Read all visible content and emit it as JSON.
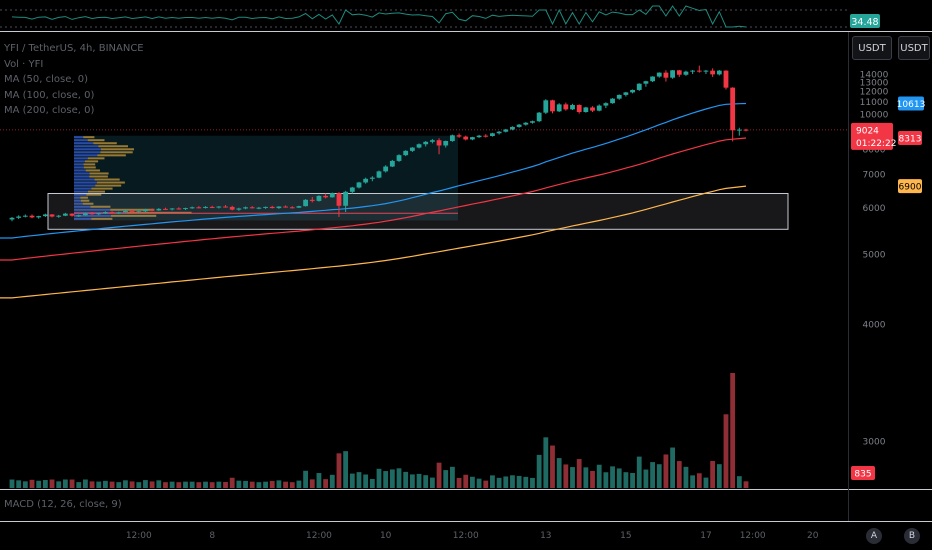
{
  "legend": {
    "symbol": "YFI / TetherUS, 4h, BINANCE",
    "vol": "Vol · YFI",
    "ma50": "MA (50, close, 0)",
    "ma100": "MA (100, close, 0)",
    "ma200": "MA (200, close, 0)"
  },
  "units": {
    "left": "USDT",
    "right": "USDT"
  },
  "badges": {
    "rsi": {
      "label": "34.48",
      "color": "#26a69a"
    },
    "ma50": {
      "label": "10613",
      "color": "#2196f3"
    },
    "price": {
      "label": "9024",
      "color": "#f23645"
    },
    "countdown": {
      "label": "01:22:22",
      "color": "#f23645"
    },
    "ma100": {
      "label": "8313",
      "color": "#f23645"
    },
    "ma200": {
      "label": "6900",
      "color": "#ffb74d"
    },
    "volume": {
      "label": "835",
      "color": "#f23645"
    }
  },
  "macd": {
    "label": "MACD (12, 26, close, 9)"
  },
  "buttons": {
    "auto": "A",
    "log": "B"
  },
  "chart_data": {
    "type": "candlestick",
    "title": "YFI / TetherUS, 4h, BINANCE",
    "y_ticks": [
      "14000",
      "13000",
      "12000",
      "11000",
      "10000",
      "9000",
      "8000",
      "7000",
      "6000",
      "5000",
      "4000",
      "3000"
    ],
    "x_ticks": [
      "12:00",
      "8",
      "12:00",
      "10",
      "12:00",
      "13",
      "15",
      "17",
      "12:00",
      "20"
    ],
    "series": [
      {
        "name": "YFI / TetherUS",
        "color_up": "#26a69a",
        "color_down": "#f23645",
        "ohlc": [
          [
            5720,
            5780,
            5680,
            5760
          ],
          [
            5760,
            5820,
            5730,
            5790
          ],
          [
            5790,
            5840,
            5770,
            5810
          ],
          [
            5810,
            5840,
            5750,
            5770
          ],
          [
            5770,
            5810,
            5740,
            5800
          ],
          [
            5800,
            5860,
            5780,
            5840
          ],
          [
            5840,
            5850,
            5770,
            5790
          ],
          [
            5790,
            5830,
            5760,
            5810
          ],
          [
            5810,
            5880,
            5800,
            5860
          ],
          [
            5860,
            5870,
            5790,
            5810
          ],
          [
            5810,
            5840,
            5780,
            5820
          ],
          [
            5820,
            5890,
            5810,
            5870
          ],
          [
            5870,
            5900,
            5830,
            5850
          ],
          [
            5850,
            5880,
            5820,
            5870
          ],
          [
            5870,
            5920,
            5850,
            5900
          ],
          [
            5900,
            5920,
            5860,
            5880
          ],
          [
            5880,
            5910,
            5850,
            5890
          ],
          [
            5890,
            5950,
            5880,
            5930
          ],
          [
            5930,
            5960,
            5890,
            5910
          ],
          [
            5910,
            5940,
            5880,
            5920
          ],
          [
            5920,
            5980,
            5900,
            5960
          ],
          [
            5960,
            5990,
            5920,
            5940
          ],
          [
            5940,
            6000,
            5930,
            5980
          ],
          [
            5980,
            6010,
            5950,
            5970
          ],
          [
            5970,
            6000,
            5940,
            5990
          ],
          [
            5990,
            6020,
            5960,
            5980
          ],
          [
            5980,
            6010,
            5950,
            6000
          ],
          [
            6000,
            6040,
            5980,
            6020
          ],
          [
            6020,
            6050,
            5990,
            6010
          ],
          [
            6010,
            6050,
            5990,
            6030
          ],
          [
            6030,
            6060,
            6000,
            6020
          ],
          [
            6020,
            6050,
            5990,
            6040
          ],
          [
            6040,
            6080,
            6010,
            6030
          ],
          [
            6030,
            6060,
            5940,
            5960
          ],
          [
            5960,
            6010,
            5930,
            5990
          ],
          [
            5990,
            6040,
            5970,
            6020
          ],
          [
            6020,
            6050,
            5990,
            6000
          ],
          [
            6000,
            6030,
            5970,
            6010
          ],
          [
            6010,
            6040,
            5980,
            6030
          ],
          [
            6030,
            6060,
            5990,
            6000
          ],
          [
            6000,
            6050,
            5980,
            6040
          ],
          [
            6040,
            6070,
            6010,
            6020
          ],
          [
            6020,
            6050,
            5990,
            6010
          ],
          [
            6010,
            6060,
            6000,
            6050
          ],
          [
            6050,
            6240,
            6040,
            6220
          ],
          [
            6220,
            6300,
            6150,
            6190
          ],
          [
            6190,
            6350,
            6170,
            6330
          ],
          [
            6330,
            6400,
            6260,
            6290
          ],
          [
            6290,
            6430,
            6280,
            6410
          ],
          [
            6410,
            6440,
            5780,
            6060
          ],
          [
            6060,
            6480,
            5900,
            6450
          ],
          [
            6450,
            6600,
            6400,
            6580
          ],
          [
            6580,
            6760,
            6550,
            6740
          ],
          [
            6740,
            6900,
            6700,
            6860
          ],
          [
            6860,
            6950,
            6780,
            6900
          ],
          [
            6900,
            7150,
            6880,
            7120
          ],
          [
            7120,
            7350,
            7080,
            7300
          ],
          [
            7300,
            7560,
            7280,
            7520
          ],
          [
            7520,
            7800,
            7480,
            7760
          ],
          [
            7760,
            7980,
            7720,
            7950
          ],
          [
            7950,
            8120,
            7900,
            8100
          ],
          [
            8100,
            8300,
            8060,
            8260
          ],
          [
            8260,
            8420,
            8150,
            8380
          ],
          [
            8380,
            8520,
            8300,
            8460
          ],
          [
            8460,
            8560,
            7800,
            8200
          ],
          [
            8200,
            8440,
            8100,
            8420
          ],
          [
            8420,
            8760,
            8380,
            8720
          ],
          [
            8720,
            8820,
            8580,
            8650
          ],
          [
            8650,
            8700,
            8450,
            8500
          ],
          [
            8500,
            8640,
            8460,
            8620
          ],
          [
            8620,
            8740,
            8580,
            8700
          ],
          [
            8700,
            8780,
            8600,
            8680
          ],
          [
            8680,
            8860,
            8650,
            8830
          ],
          [
            8830,
            8960,
            8760,
            8920
          ],
          [
            8920,
            9080,
            8880,
            9050
          ],
          [
            9050,
            9240,
            9000,
            9200
          ],
          [
            9200,
            9380,
            9150,
            9340
          ],
          [
            9340,
            9500,
            9280,
            9460
          ],
          [
            9460,
            9600,
            9400,
            9560
          ],
          [
            9560,
            10200,
            9500,
            10150
          ],
          [
            10150,
            11250,
            10050,
            11150
          ],
          [
            11150,
            11200,
            10100,
            10250
          ],
          [
            10250,
            10900,
            10200,
            10800
          ],
          [
            10800,
            10950,
            10300,
            10400
          ],
          [
            10400,
            10850,
            10350,
            10750
          ],
          [
            10750,
            10800,
            10080,
            10200
          ],
          [
            10200,
            10600,
            10150,
            10550
          ],
          [
            10550,
            10650,
            10200,
            10300
          ],
          [
            10300,
            10800,
            10250,
            10700
          ],
          [
            10700,
            10980,
            10500,
            10900
          ],
          [
            10900,
            11350,
            10850,
            11300
          ],
          [
            11300,
            11700,
            11200,
            11650
          ],
          [
            11650,
            11950,
            11500,
            11900
          ],
          [
            11900,
            12200,
            11800,
            12150
          ],
          [
            12150,
            12900,
            12050,
            12850
          ],
          [
            12850,
            13200,
            12500,
            13150
          ],
          [
            13150,
            13800,
            13050,
            13750
          ],
          [
            13750,
            14350,
            13600,
            14300
          ],
          [
            14300,
            14650,
            13100,
            13600
          ],
          [
            13600,
            14700,
            13450,
            14650
          ],
          [
            14650,
            14700,
            13700,
            14000
          ],
          [
            14000,
            14600,
            13850,
            14450
          ],
          [
            14450,
            14700,
            14100,
            14600
          ],
          [
            14600,
            15400,
            14300,
            14550
          ],
          [
            14550,
            14700,
            14100,
            14600
          ],
          [
            14600,
            14950,
            13700,
            14050
          ],
          [
            14050,
            14700,
            13900,
            14600
          ],
          [
            14600,
            14650,
            12200,
            12400
          ],
          [
            12400,
            12450,
            8400,
            9000
          ],
          [
            9000,
            9150,
            8700,
            9040
          ],
          [
            9040,
            9090,
            8940,
            9024
          ]
        ]
      },
      {
        "name": "Vol · YFI",
        "color_up": "#1f6b63",
        "color_down": "#8f2e35"
      },
      {
        "name": "MA (50, close, 0)",
        "color": "#2196f3"
      },
      {
        "name": "MA (100, close, 0)",
        "color": "#f23645"
      },
      {
        "name": "MA (200, close, 0)",
        "color": "#ffb74d"
      }
    ],
    "ylim": [
      2500,
      15000
    ],
    "grid": false,
    "legend_position": "top-left"
  }
}
